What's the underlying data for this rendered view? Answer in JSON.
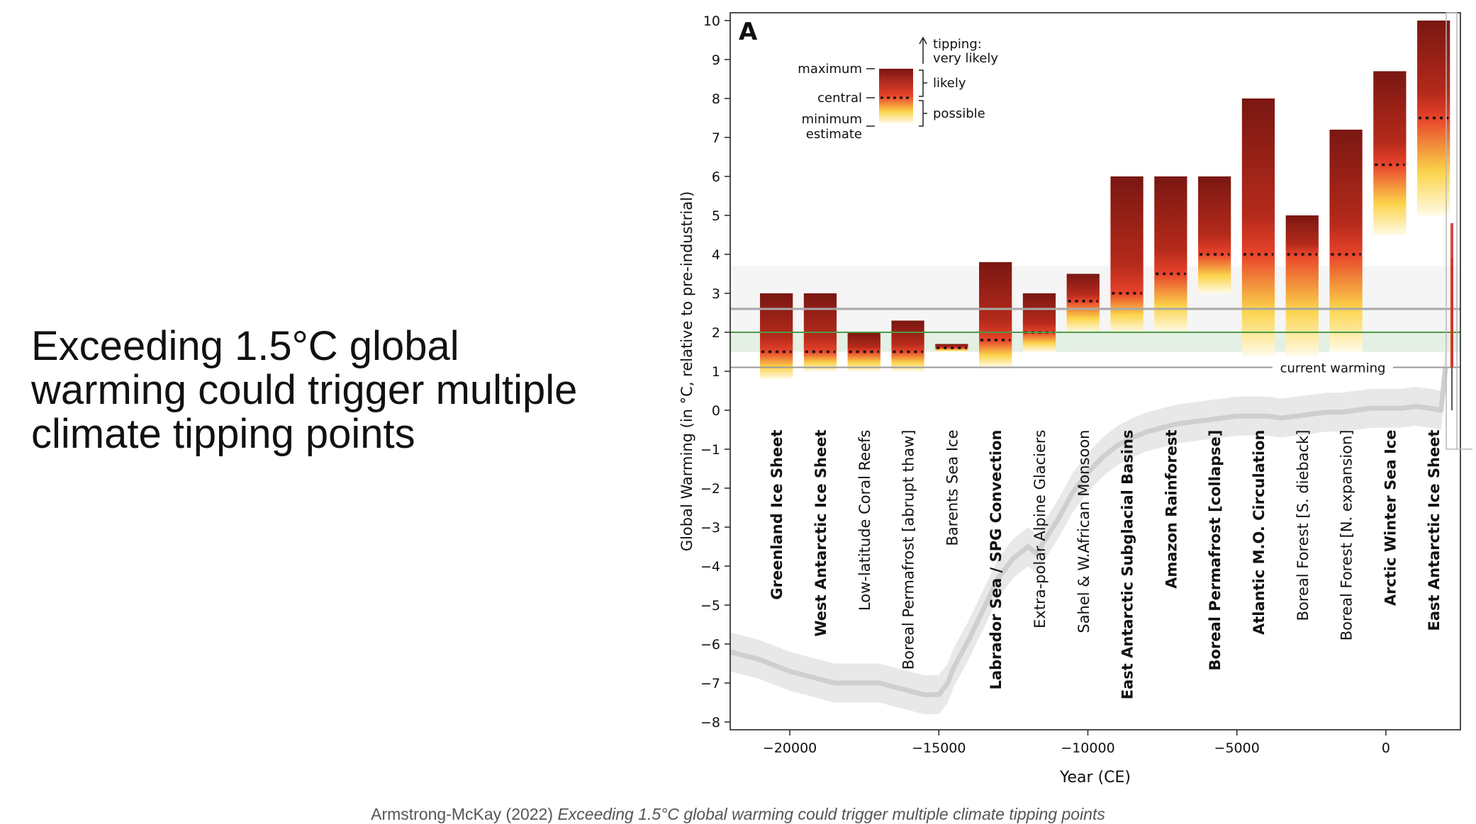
{
  "slide": {
    "title": "Exceeding 1.5°C global warming could trigger multiple climate tipping points",
    "citation_author": "Armstrong-McKay (2022)",
    "citation_title": "Exceeding 1.5°C global warming could trigger multiple climate tipping points"
  },
  "chart_data": {
    "type": "bar",
    "panel_label": "A",
    "xlabel": "Year (CE)",
    "ylabel": "Global Warming (in °C, relative to pre-industrial)",
    "xlim": [
      -22000,
      2500
    ],
    "ylim": [
      -8.2,
      10.2
    ],
    "xticks": [
      -20000,
      -15000,
      -10000,
      -5000,
      0
    ],
    "xtick_labels": [
      "−20000",
      "−15000",
      "−10000",
      "−5000",
      "0"
    ],
    "yticks": [
      -8,
      -7,
      -6,
      -5,
      -4,
      -3,
      -2,
      -1,
      0,
      1,
      2,
      3,
      4,
      5,
      6,
      7,
      8,
      9,
      10
    ],
    "ytick_labels": [
      "−8",
      "−7",
      "−6",
      "−5",
      "−4",
      "−3",
      "−2",
      "−1",
      "0",
      "1",
      "2",
      "3",
      "4",
      "5",
      "6",
      "7",
      "8",
      "9",
      "10"
    ],
    "bar_year_span": 1100,
    "bar_year_step": 1470,
    "bar_first_year": -20450,
    "tipping_elements": [
      {
        "name": "Greenland Ice Sheet",
        "bold": true,
        "min": 0.8,
        "central": 1.5,
        "max": 3.0
      },
      {
        "name": "West Antarctic Ice Sheet",
        "bold": true,
        "min": 1.0,
        "central": 1.5,
        "max": 3.0
      },
      {
        "name": "Low-latitude Coral Reefs",
        "bold": false,
        "min": 1.0,
        "central": 1.5,
        "max": 2.0
      },
      {
        "name": "Boreal Permafrost [abrupt thaw]",
        "bold": false,
        "min": 1.0,
        "central": 1.5,
        "max": 2.3
      },
      {
        "name": "Barents Sea Ice",
        "bold": false,
        "min": 1.5,
        "central": 1.6,
        "max": 1.7
      },
      {
        "name": "Labrador Sea / SPG Convection",
        "bold": true,
        "min": 1.1,
        "central": 1.8,
        "max": 3.8
      },
      {
        "name": "Extra-polar Alpine Glaciers",
        "bold": false,
        "min": 1.5,
        "central": 2.0,
        "max": 3.0
      },
      {
        "name": "Sahel & W.African Monsoon",
        "bold": false,
        "min": 2.0,
        "central": 2.8,
        "max": 3.5
      },
      {
        "name": "East Antarctic Subglacial Basins",
        "bold": true,
        "min": 2.0,
        "central": 3.0,
        "max": 6.0
      },
      {
        "name": "Amazon Rainforest",
        "bold": true,
        "min": 2.0,
        "central": 3.5,
        "max": 6.0
      },
      {
        "name": "Boreal Permafrost [collapse]",
        "bold": true,
        "min": 3.0,
        "central": 4.0,
        "max": 6.0
      },
      {
        "name": "Atlantic M.O. Circulation",
        "bold": true,
        "min": 1.4,
        "central": 4.0,
        "max": 8.0
      },
      {
        "name": "Boreal Forest [S. dieback]",
        "bold": false,
        "min": 1.4,
        "central": 4.0,
        "max": 5.0
      },
      {
        "name": "Boreal Forest [N. expansion]",
        "bold": false,
        "min": 1.5,
        "central": 4.0,
        "max": 7.2
      },
      {
        "name": "Arctic Winter Sea Ice",
        "bold": true,
        "min": 4.5,
        "central": 6.3,
        "max": 8.7
      },
      {
        "name": "East Antarctic Ice Sheet",
        "bold": true,
        "min": 5.0,
        "central": 7.5,
        "max": 10.0
      }
    ],
    "reference_lines": {
      "current_warming": 1.1,
      "current_warming_label": "current warming",
      "grey_line": 2.6,
      "green_line": 2.0,
      "grey_band": [
        1.5,
        3.7
      ],
      "green_band": [
        1.5,
        2.0
      ]
    },
    "temperature_history": {
      "years": [
        -22000,
        -21000,
        -20000,
        -19000,
        -18500,
        -18000,
        -17500,
        -17000,
        -16500,
        -16000,
        -15500,
        -15000,
        -14700,
        -14500,
        -14000,
        -13500,
        -13000,
        -12500,
        -12000,
        -11700,
        -11500,
        -11000,
        -10500,
        -10000,
        -9500,
        -9000,
        -8500,
        -8000,
        -7500,
        -7000,
        -6500,
        -6000,
        -5500,
        -5000,
        -4500,
        -4000,
        -3500,
        -3000,
        -2500,
        -2000,
        -1500,
        -1000,
        -500,
        0,
        500,
        1000,
        1500,
        1850,
        2000
      ],
      "values": [
        -6.2,
        -6.4,
        -6.7,
        -6.9,
        -7.0,
        -7.0,
        -7.0,
        -7.0,
        -7.1,
        -7.2,
        -7.3,
        -7.3,
        -7.0,
        -6.6,
        -5.9,
        -5.1,
        -4.3,
        -3.8,
        -3.5,
        -3.7,
        -3.4,
        -2.8,
        -2.1,
        -1.6,
        -1.2,
        -0.9,
        -0.7,
        -0.55,
        -0.45,
        -0.35,
        -0.3,
        -0.25,
        -0.2,
        -0.15,
        -0.15,
        -0.15,
        -0.2,
        -0.15,
        -0.1,
        -0.05,
        -0.05,
        0.0,
        0.05,
        0.05,
        0.05,
        0.1,
        0.05,
        0.0,
        1.1
      ],
      "uncertainty": 0.5
    },
    "legend": {
      "maximum_label": "maximum",
      "central_label": "central",
      "minimum_label_1": "minimum",
      "minimum_label_2": "estimate",
      "very_likely_1": "tipping:",
      "very_likely_2": "very likely",
      "likely_label": "likely",
      "possible_label": "possible"
    },
    "projection_colors": [
      "#3b7dc0",
      "#f0b429",
      "#e8792a",
      "#d62728"
    ],
    "bar_colors": {
      "dark": "#7a1712",
      "mid": "#e8432a",
      "light": "#fbd34a",
      "fade": "#fffbe6"
    },
    "grid": false
  }
}
